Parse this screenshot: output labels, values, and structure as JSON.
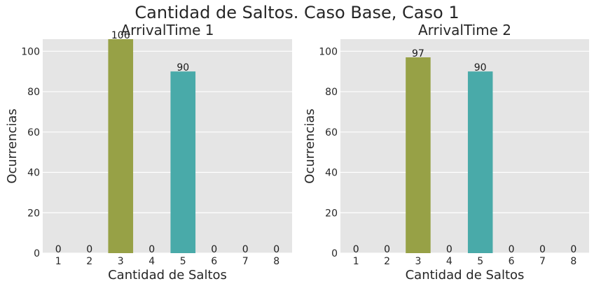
{
  "suptitle": "Cantidad de Saltos. Caso Base, Caso 1",
  "chart_data": [
    {
      "type": "bar",
      "title": "ArrivalTime 1",
      "xlabel": "Cantidad de Saltos",
      "ylabel": "Ocurrencias",
      "categories": [
        "1",
        "2",
        "3",
        "4",
        "5",
        "6",
        "7",
        "8"
      ],
      "values": [
        0,
        0,
        106,
        0,
        90,
        0,
        0,
        0
      ],
      "ylim": [
        0,
        106
      ],
      "yticks": [
        0,
        20,
        40,
        60,
        80,
        100
      ],
      "grid": true
    },
    {
      "type": "bar",
      "title": "ArrivalTime 2",
      "xlabel": "Cantidad de Saltos",
      "ylabel": "Ocurrencias",
      "categories": [
        "1",
        "2",
        "3",
        "4",
        "5",
        "6",
        "7",
        "8"
      ],
      "values": [
        0,
        0,
        97,
        0,
        90,
        0,
        0,
        0
      ],
      "ylim": [
        0,
        106
      ],
      "yticks": [
        0,
        20,
        40,
        60,
        80,
        100
      ],
      "grid": true
    }
  ],
  "colors": {
    "background": "#e5e5e5",
    "grid": "#ffffff",
    "bars": [
      "#f77189",
      "#dc8932",
      "#97a146",
      "#50b131",
      "#49aaa9",
      "#3ba3ec",
      "#bb83f4",
      "#f565cc"
    ]
  }
}
